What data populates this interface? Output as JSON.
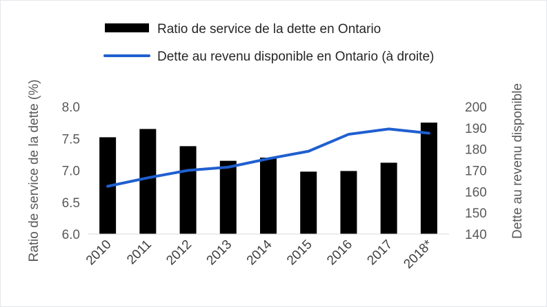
{
  "chart_data": {
    "type": "bar",
    "categories": [
      "2010",
      "2011",
      "2012",
      "2013",
      "2014",
      "2015",
      "2016",
      "2017",
      "2018*"
    ],
    "series": [
      {
        "name": "Ratio de service de la dette en Ontario",
        "type": "bar",
        "axis": "left",
        "color": "#000000",
        "values": [
          7.52,
          7.65,
          7.38,
          7.15,
          7.2,
          6.98,
          6.99,
          7.12,
          7.75
        ]
      },
      {
        "name": "Dette au revenu disponible en Ontario (à droite)",
        "type": "line",
        "axis": "right",
        "color": "#1f5fd0",
        "values": [
          162.5,
          166.5,
          170.0,
          171.5,
          175.5,
          179.0,
          187.0,
          189.5,
          187.5
        ]
      }
    ],
    "y_left": {
      "label": "Ratio de service de la dette (%)",
      "lim": [
        6.0,
        8.0
      ],
      "ticks": [
        "6.0",
        "6.5",
        "7.0",
        "7.5",
        "8.0"
      ]
    },
    "y_right": {
      "label": "Dette au revenu disponible",
      "lim": [
        140,
        200
      ],
      "ticks": [
        "140",
        "150",
        "160",
        "170",
        "180",
        "190",
        "200"
      ]
    },
    "grid": false,
    "legend_position": "top"
  }
}
